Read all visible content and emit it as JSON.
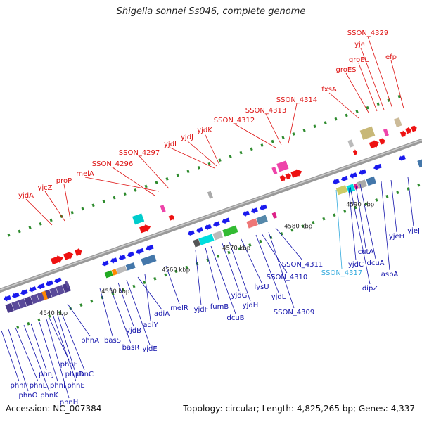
{
  "title": "Shigella sonnei Ss046, complete genome",
  "footer": {
    "accession": "Accession: NC_007384",
    "stats": "Topology: circular; Length: 4,825,265 bp; Genes: 4,337"
  },
  "colors": {
    "forward_label": "#dd1111",
    "reverse_label": "#1111aa",
    "highlight_label": "#33aadd",
    "backbone": "#888888",
    "tick_dots": "#2e8b2e"
  },
  "ticks": [
    "4540 kbp",
    "4550 kbp",
    "4560 kbp",
    "4570 kbp",
    "4580 kbp",
    "4590 kbp"
  ],
  "forward_labels": [
    "yjdA",
    "yjcZ",
    "proP",
    "melA",
    "SSON_4296",
    "SSON_4297",
    "yjdI",
    "yjdJ",
    "yjdK",
    "SSON_4312",
    "SSON_4313",
    "SSON_4314",
    "fxsA",
    "groES",
    "groEL",
    "yjeI",
    "SSON_4329",
    "efp"
  ],
  "reverse_labels": [
    "phnP",
    "phnO",
    "phnL",
    "phnK",
    "phnJ",
    "phnI",
    "phnH",
    "phnF",
    "phnE",
    "phnD",
    "phnC",
    "phnA",
    "basS",
    "basR",
    "yjdB",
    "yjdE",
    "adiA",
    "adiY",
    "melR",
    "yjdF",
    "fumB",
    "dcuB",
    "yjdG",
    "yjdH",
    "lysU",
    "yjdL",
    "SSON_4310",
    "SSON_4309",
    "SSON_4311",
    "SSON_4317",
    "yjdC",
    "dipZ",
    "cutA",
    "dcuA",
    "aspA",
    "yjeH",
    "yjeJ"
  ],
  "highlighted_label": "SSON_4317"
}
